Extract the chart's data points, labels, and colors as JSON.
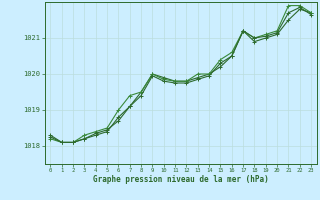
{
  "bg_color": "#cceeff",
  "plot_bg_color": "#cceeff",
  "grid_color": "#bbdddd",
  "line_color": "#2d6a2d",
  "line_color2": "#3a8a3a",
  "xlabel": "Graphe pression niveau de la mer (hPa)",
  "xlim": [
    -0.5,
    23.5
  ],
  "ylim": [
    1017.5,
    1022.0
  ],
  "yticks": [
    1018,
    1019,
    1020,
    1021
  ],
  "xticks": [
    0,
    1,
    2,
    3,
    4,
    5,
    6,
    7,
    8,
    9,
    10,
    11,
    12,
    13,
    14,
    15,
    16,
    17,
    18,
    19,
    20,
    21,
    22,
    23
  ],
  "series1_x": [
    0,
    1,
    2,
    3,
    4,
    5,
    6,
    7,
    8,
    9,
    10,
    11,
    12,
    13,
    14,
    15,
    16,
    17,
    18,
    19,
    20,
    21,
    22,
    23
  ],
  "series1_y": [
    1018.3,
    1018.1,
    1018.1,
    1018.2,
    1018.3,
    1018.4,
    1018.8,
    1019.1,
    1019.5,
    1020.0,
    1019.9,
    1019.8,
    1019.8,
    1019.9,
    1020.0,
    1020.2,
    1020.5,
    1021.2,
    1020.9,
    1021.0,
    1021.1,
    1021.5,
    1021.8,
    1021.7
  ],
  "series2_x": [
    0,
    1,
    2,
    3,
    4,
    5,
    6,
    7,
    8,
    9,
    10,
    11,
    12,
    13,
    14,
    15,
    16,
    17,
    18,
    19,
    20,
    21,
    22,
    23
  ],
  "series2_y": [
    1018.2,
    1018.1,
    1018.1,
    1018.3,
    1018.4,
    1018.5,
    1019.0,
    1019.4,
    1019.5,
    1020.0,
    1019.85,
    1019.8,
    1019.8,
    1020.0,
    1020.0,
    1020.4,
    1020.6,
    1021.2,
    1021.0,
    1021.1,
    1021.2,
    1021.9,
    1021.9,
    1021.7
  ],
  "series3_x": [
    0,
    1,
    2,
    3,
    4,
    5,
    6,
    7,
    8,
    9,
    10,
    11,
    12,
    13,
    14,
    15,
    16,
    17,
    18,
    19,
    20,
    21,
    22,
    23
  ],
  "series3_y": [
    1018.25,
    1018.1,
    1018.1,
    1018.2,
    1018.35,
    1018.45,
    1018.7,
    1019.1,
    1019.4,
    1019.95,
    1019.8,
    1019.75,
    1019.75,
    1019.85,
    1019.95,
    1020.3,
    1020.5,
    1021.2,
    1021.0,
    1021.05,
    1021.15,
    1021.7,
    1021.85,
    1021.65
  ]
}
